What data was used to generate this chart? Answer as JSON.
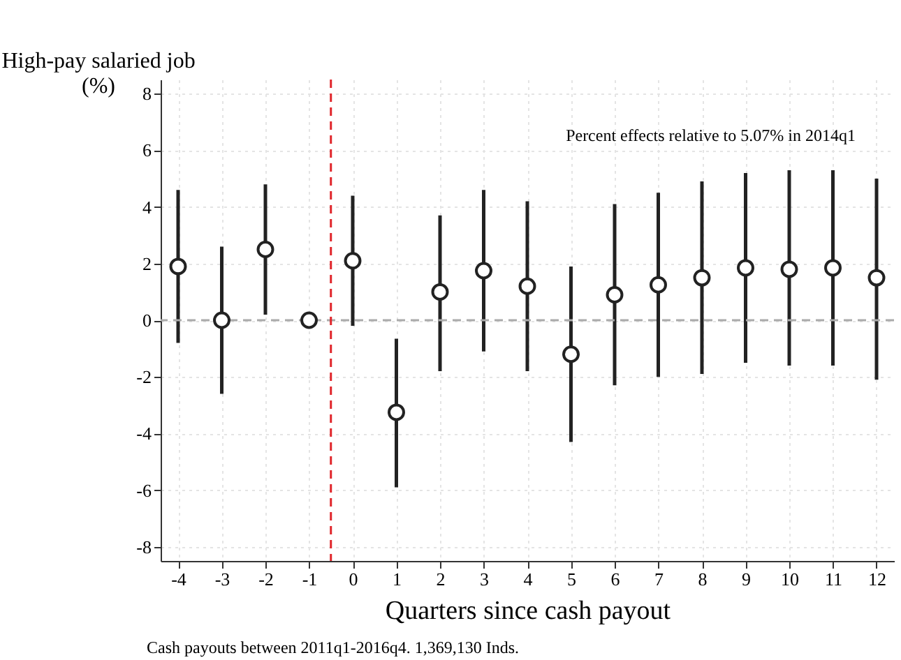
{
  "chart_data": {
    "type": "scatter",
    "ylabel": "High-pay salaried job (%)",
    "xlabel": "Quarters since cash payout",
    "x": [
      -4,
      -3,
      -2,
      -1,
      0,
      1,
      2,
      3,
      4,
      5,
      6,
      7,
      8,
      9,
      10,
      11,
      12
    ],
    "values": [
      1.9,
      0.0,
      2.5,
      0.0,
      2.1,
      -3.25,
      1.0,
      1.75,
      1.2,
      -1.2,
      0.9,
      1.25,
      1.5,
      1.85,
      1.8,
      1.85,
      1.5
    ],
    "errors": [
      [
        -0.8,
        4.6
      ],
      [
        -2.6,
        2.6
      ],
      [
        0.2,
        4.8
      ],
      null,
      [
        -0.2,
        4.4
      ],
      [
        -5.9,
        -0.65
      ],
      [
        -1.8,
        3.7
      ],
      [
        -1.1,
        4.6
      ],
      [
        -1.8,
        4.2
      ],
      [
        -4.3,
        1.9
      ],
      [
        -2.3,
        4.1
      ],
      [
        -2.0,
        4.5
      ],
      [
        -1.9,
        4.9
      ],
      [
        -1.5,
        5.2
      ],
      [
        -1.6,
        5.3
      ],
      [
        -1.6,
        5.3
      ],
      [
        -2.1,
        5.0
      ]
    ],
    "color": "#222222",
    "marker": "circle",
    "grid": true,
    "xlim": [
      -4.4,
      12.4
    ],
    "xticks": [
      -4,
      -3,
      -2,
      -1,
      0,
      1,
      2,
      3,
      4,
      5,
      6,
      7,
      8,
      9,
      10,
      11,
      12
    ],
    "ylim": [
      -8.5,
      8.5
    ],
    "yticks": [
      -8,
      -6,
      -4,
      -2,
      0,
      2,
      4,
      6,
      8
    ],
    "ref_lines": [
      {
        "axis": "y",
        "value": 0,
        "color": "#aaaaaa",
        "line_style": "dashed"
      },
      {
        "axis": "x",
        "value": -0.5,
        "color": "#e0242a",
        "line_style": "dashed"
      }
    ],
    "annotations": [
      "Percent effects relative to 5.07% in 2014q1",
      "Cash payouts between 2011q1-2016q4. 1,369,130 Inds."
    ]
  }
}
